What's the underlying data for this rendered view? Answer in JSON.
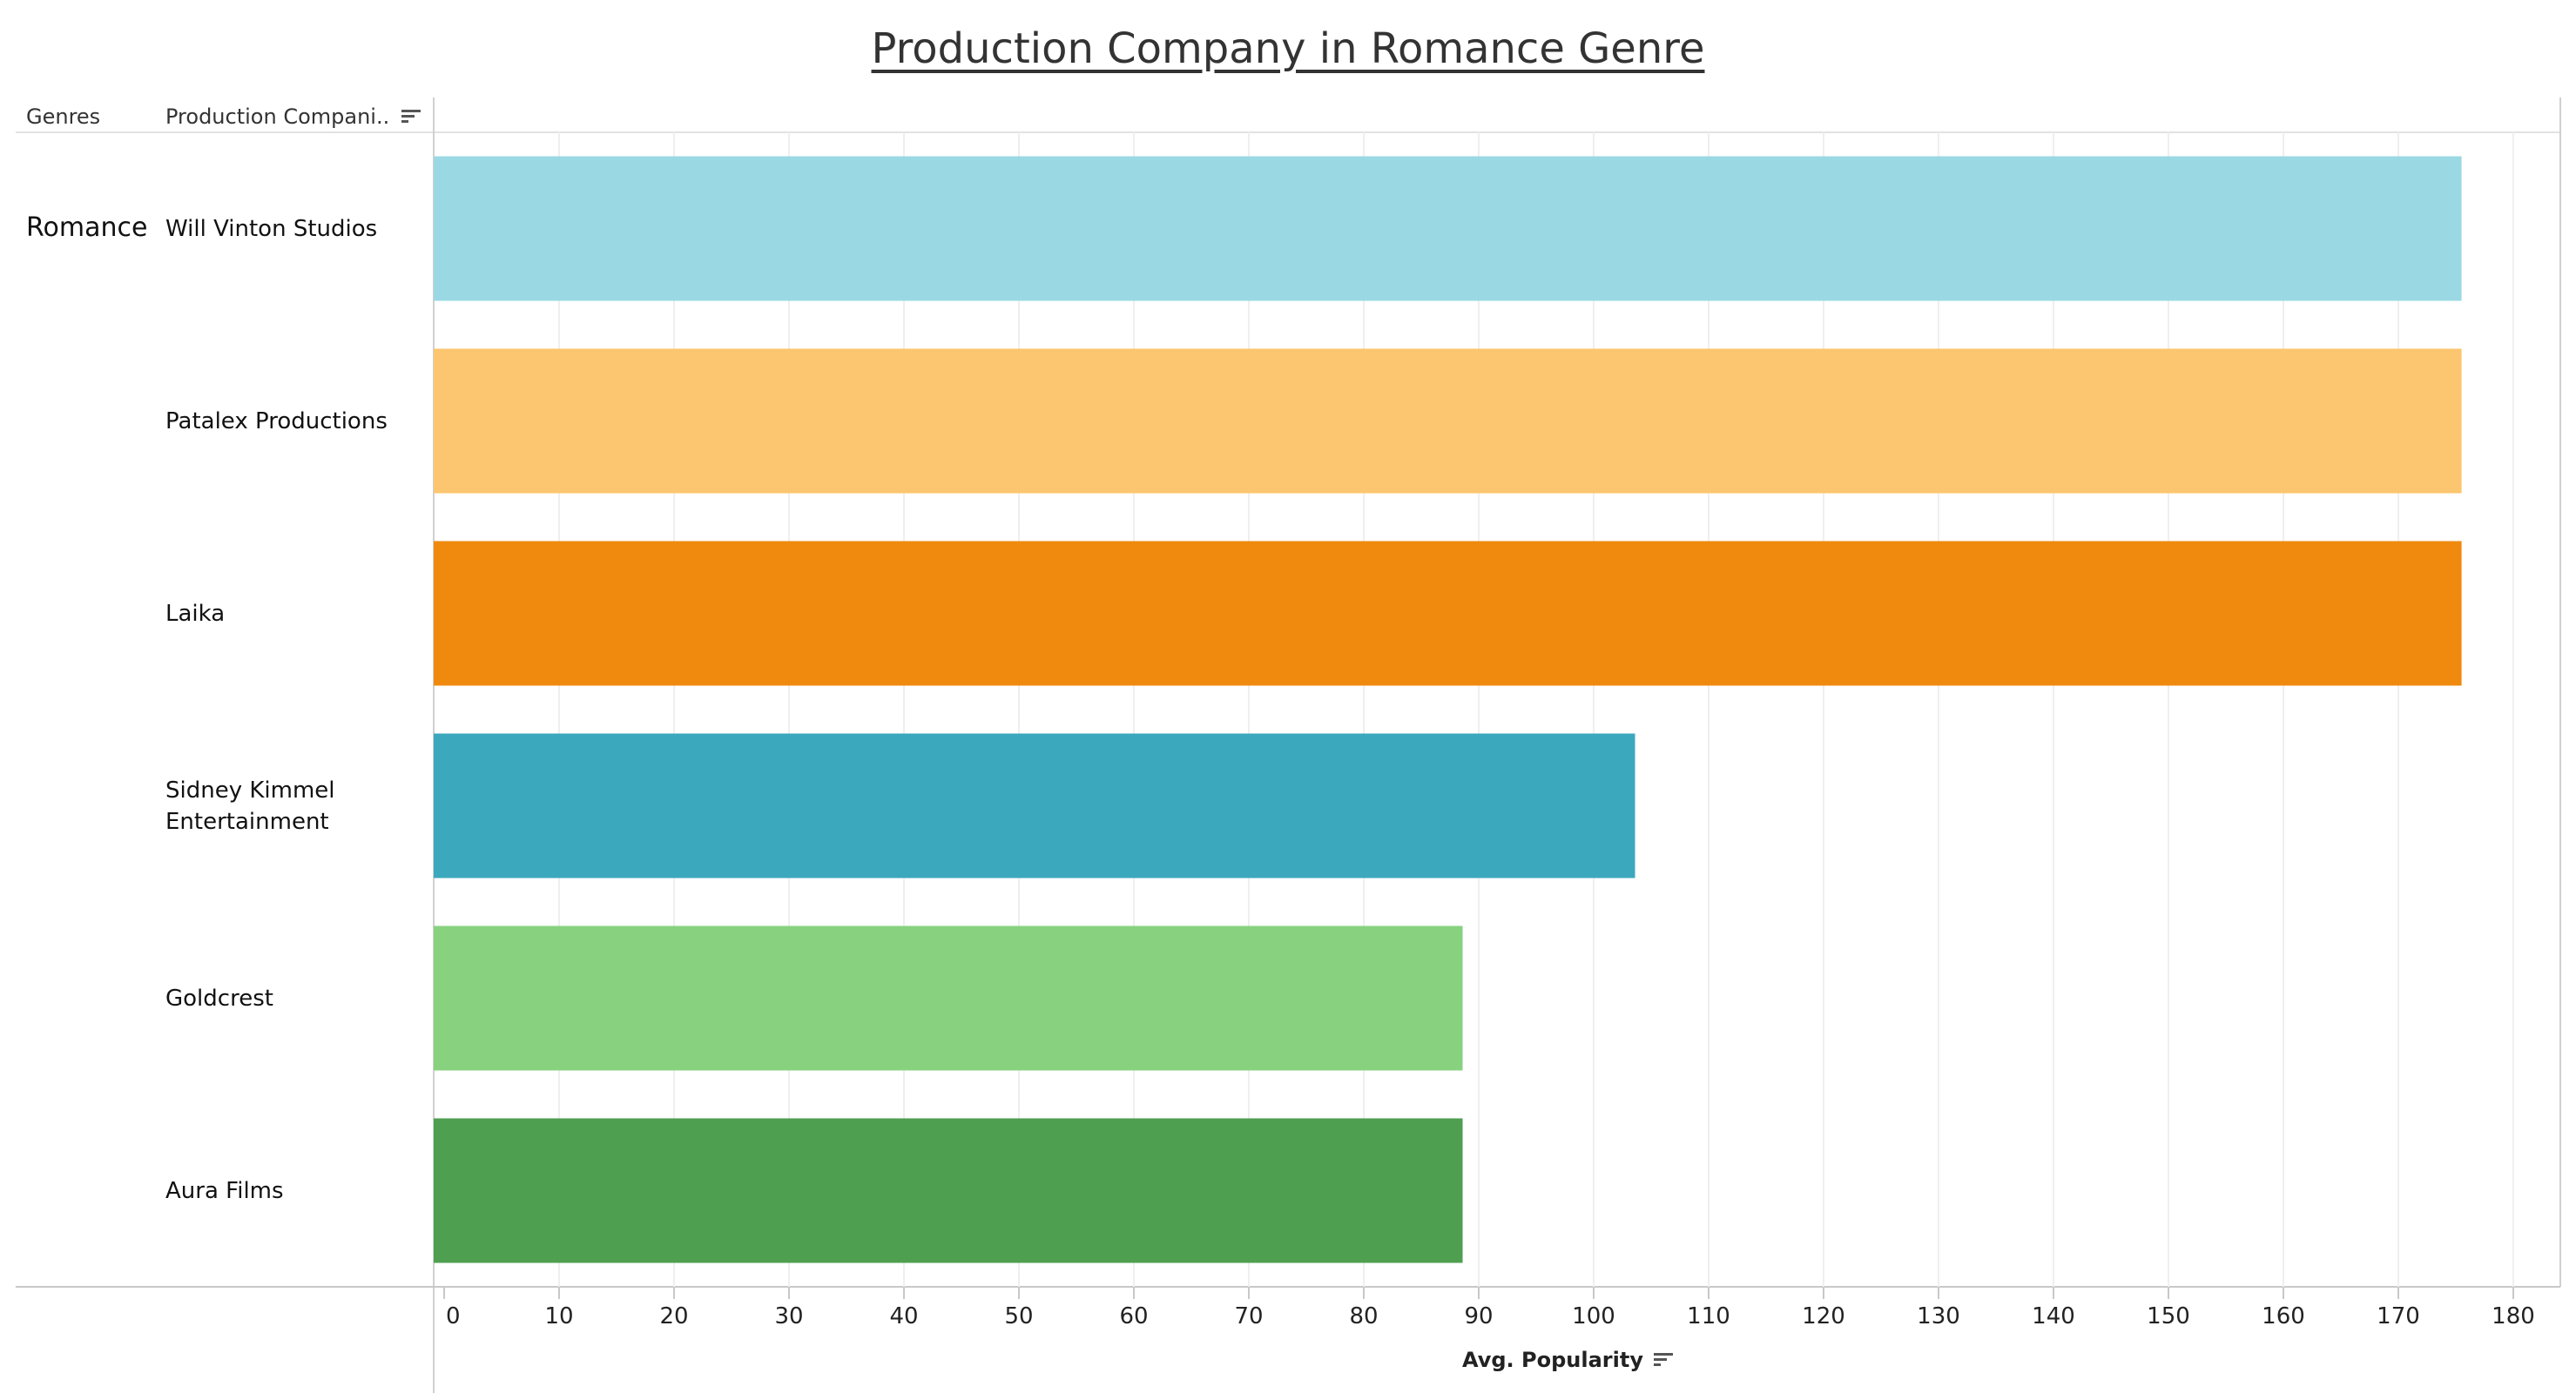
{
  "page_title": "Production Company in Romance Genre",
  "headers": {
    "genres": "Genres",
    "company": "Production Compani.."
  },
  "genre": "Romance",
  "chart_data": {
    "type": "bar",
    "orientation": "horizontal",
    "title": "Production Company in Romance Genre",
    "xlabel": "Avg. Popularity",
    "ylabel": "Production Companies",
    "categories": [
      "Will Vinton Studios",
      "Patalex Productions",
      "Laika",
      "Sidney Kimmel Entertainment",
      "Goldcrest",
      "Aura Films"
    ],
    "category_lines": [
      [
        "Will Vinton Studios"
      ],
      [
        "Patalex Productions"
      ],
      [
        "Laika"
      ],
      [
        "Sidney Kimmel",
        "Entertainment"
      ],
      [
        "Goldcrest"
      ],
      [
        "Aura Films"
      ]
    ],
    "values": [
      175.5,
      175.5,
      175.5,
      103.6,
      88.6,
      88.6
    ],
    "colors": [
      "#9ad9e3",
      "#fbc66f",
      "#ef8a0f",
      "#3ca8bd",
      "#88d17f",
      "#4f9f51"
    ],
    "xlim": [
      0,
      180
    ],
    "xticks": [
      0,
      10,
      20,
      30,
      40,
      50,
      60,
      70,
      80,
      90,
      100,
      110,
      120,
      130,
      140,
      150,
      160,
      170,
      180
    ],
    "grid": true
  }
}
